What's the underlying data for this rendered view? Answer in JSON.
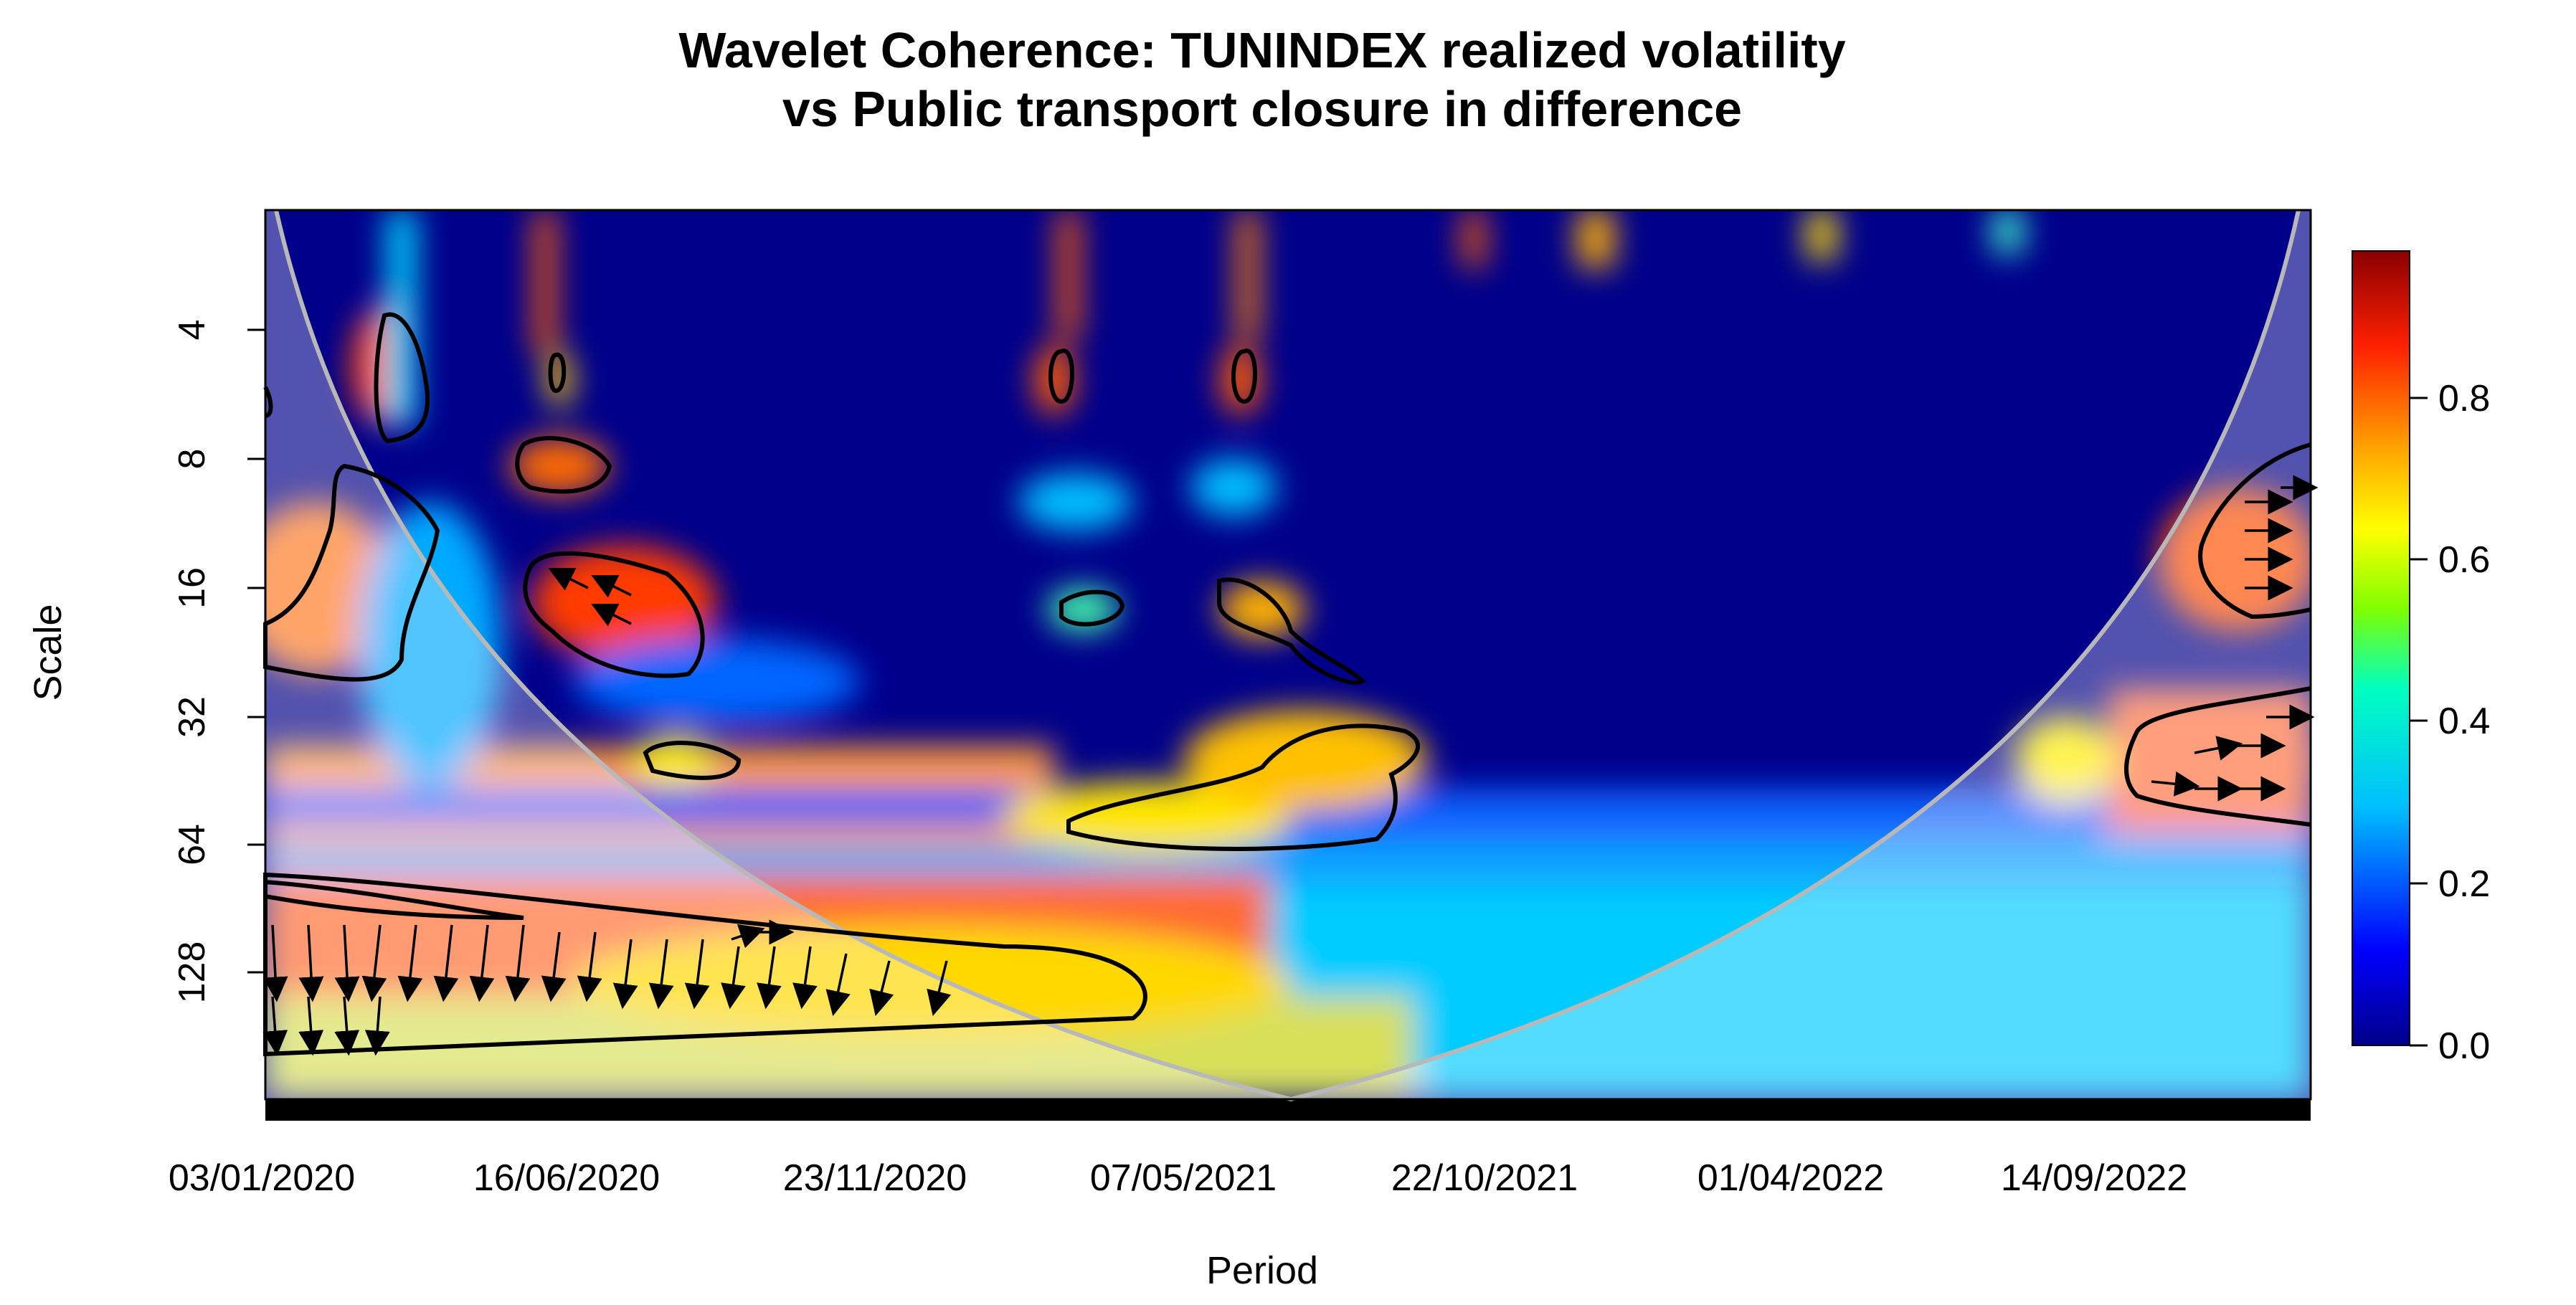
{
  "chart_data": {
    "type": "heatmap",
    "title_lines": [
      "Wavelet Coherence: TUNINDEX realized volatility",
      "vs Public transport closure in difference"
    ],
    "xlabel": "Period",
    "ylabel": "Scale",
    "x_ticks": [
      "03/01/2020",
      "16/06/2020",
      "23/11/2020",
      "07/05/2021",
      "22/10/2021",
      "01/04/2022",
      "14/09/2022"
    ],
    "y_ticks": [
      "4",
      "8",
      "16",
      "32",
      "64",
      "128"
    ],
    "y_scale": "log2",
    "colorbar": {
      "ticks": [
        "0.0",
        "0.2",
        "0.4",
        "0.6",
        "0.8"
      ],
      "range": [
        0,
        1
      ],
      "colors": [
        "#00008b",
        "#0000ff",
        "#00bfff",
        "#00ffc0",
        "#7fff00",
        "#ffff00",
        "#ffa500",
        "#ff2000",
        "#8b0000"
      ]
    },
    "cone_of_influence": true,
    "significance_contours": true,
    "phase_arrows": true
  }
}
